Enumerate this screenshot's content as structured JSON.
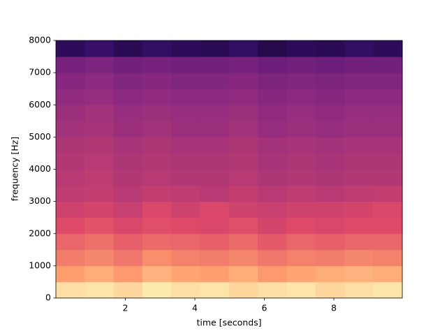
{
  "chart_data": {
    "type": "spectrogram",
    "xlabel": "time [seconds]",
    "ylabel": "frequency [Hz]",
    "xlim": [
      0,
      9.97
    ],
    "ylim": [
      0,
      8000
    ],
    "xticks": [
      2,
      4,
      6,
      8
    ],
    "yticks": [
      0,
      1000,
      2000,
      3000,
      4000,
      5000,
      6000,
      7000,
      8000
    ],
    "xbins": [
      0,
      0.83,
      1.66,
      2.49,
      3.32,
      4.15,
      4.98,
      5.81,
      6.64,
      7.47,
      8.3,
      9.13,
      9.97
    ],
    "ybins": [
      0,
      500,
      1000,
      1500,
      2000,
      2500,
      3000,
      3500,
      4000,
      4500,
      5000,
      5500,
      6000,
      6500,
      7000,
      7500,
      8000
    ],
    "clim": [
      -100,
      -25
    ],
    "colormap": [
      "#000004",
      "#3b0f70",
      "#8c2981",
      "#de4968",
      "#fe9f6d",
      "#fcfdbf"
    ],
    "z": [
      [
        -30,
        -29,
        -31,
        -28,
        -30,
        -29,
        -31,
        -30,
        -29,
        -31,
        -30,
        -29
      ],
      [
        -40,
        -38,
        -41,
        -37,
        -39,
        -40,
        -38,
        -41,
        -39,
        -38,
        -37,
        -38
      ],
      [
        -46,
        -44,
        -47,
        -43,
        -45,
        -46,
        -44,
        -47,
        -45,
        -46,
        -44,
        -45
      ],
      [
        -50,
        -48,
        -51,
        -49,
        -50,
        -51,
        -49,
        -52,
        -50,
        -51,
        -50,
        -50
      ],
      [
        -55,
        -53,
        -56,
        -54,
        -55,
        -56,
        -54,
        -57,
        -55,
        -56,
        -55,
        -55
      ],
      [
        -58,
        -57,
        -59,
        -56,
        -58,
        -56,
        -58,
        -59,
        -58,
        -58,
        -57,
        -56
      ],
      [
        -61,
        -60,
        -62,
        -60,
        -61,
        -62,
        -60,
        -62,
        -61,
        -62,
        -61,
        -60
      ],
      [
        -62,
        -61,
        -63,
        -62,
        -63,
        -63,
        -62,
        -64,
        -63,
        -64,
        -63,
        -63
      ],
      [
        -63,
        -62,
        -64,
        -63,
        -64,
        -64,
        -63,
        -65,
        -64,
        -65,
        -64,
        -64
      ],
      [
        -64,
        -63,
        -65,
        -64,
        -65,
        -65,
        -64,
        -66,
        -65,
        -66,
        -65,
        -65
      ],
      [
        -66,
        -65,
        -67,
        -66,
        -67,
        -67,
        -66,
        -68,
        -67,
        -68,
        -67,
        -67
      ],
      [
        -67,
        -66,
        -68,
        -67,
        -68,
        -68,
        -67,
        -69,
        -68,
        -69,
        -68,
        -68
      ],
      [
        -69,
        -68,
        -70,
        -69,
        -70,
        -70,
        -69,
        -71,
        -70,
        -71,
        -70,
        -70
      ],
      [
        -71,
        -70,
        -72,
        -71,
        -72,
        -72,
        -71,
        -73,
        -72,
        -73,
        -72,
        -72
      ],
      [
        -74,
        -73,
        -75,
        -74,
        -75,
        -75,
        -74,
        -76,
        -75,
        -76,
        -75,
        -75
      ],
      [
        -88,
        -86,
        -89,
        -87,
        -88,
        -89,
        -87,
        -90,
        -88,
        -89,
        -87,
        -88
      ]
    ]
  }
}
